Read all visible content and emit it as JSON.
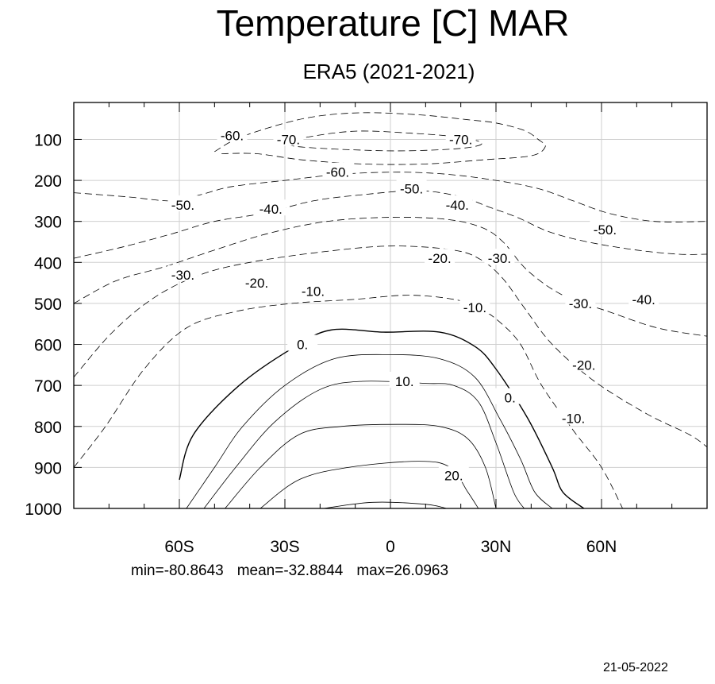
{
  "figure": {
    "title": "Temperature [C] MAR",
    "subtitle": "ERA5 (2021-2021)",
    "stats": {
      "min": "min=-80.8643",
      "mean": "mean=-32.8844",
      "max": "max=26.0963"
    },
    "date": "21-05-2022"
  },
  "chart_data": {
    "type": "contour",
    "title": "Temperature [C] MAR",
    "subtitle": "ERA5 (2021-2021)",
    "xlabel": "",
    "ylabel": "",
    "x_range": [
      -90,
      90
    ],
    "y_range": [
      1000,
      10
    ],
    "x_ticks": [
      {
        "value": -60,
        "label": "60S"
      },
      {
        "value": -30,
        "label": "30S"
      },
      {
        "value": 0,
        "label": "0"
      },
      {
        "value": 30,
        "label": "30N"
      },
      {
        "value": 60,
        "label": "60N"
      }
    ],
    "y_ticks": [
      {
        "value": 100,
        "label": "100"
      },
      {
        "value": 200,
        "label": "200"
      },
      {
        "value": 300,
        "label": "300"
      },
      {
        "value": 400,
        "label": "400"
      },
      {
        "value": 500,
        "label": "500"
      },
      {
        "value": 600,
        "label": "600"
      },
      {
        "value": 700,
        "label": "700"
      },
      {
        "value": 800,
        "label": "800"
      },
      {
        "value": 900,
        "label": "900"
      },
      {
        "value": 1000,
        "label": "1000"
      }
    ],
    "grid": true,
    "negative_contours": "dashed",
    "contours": [
      {
        "level": 0,
        "points": [
          [
            -60,
            930
          ],
          [
            -56,
            820
          ],
          [
            -43,
            700
          ],
          [
            -28,
            610
          ],
          [
            -17,
            565
          ],
          [
            -2,
            570
          ],
          [
            14,
            570
          ],
          [
            24,
            605
          ],
          [
            30,
            660
          ],
          [
            39,
            780
          ],
          [
            46,
            900
          ],
          [
            49,
            960
          ],
          [
            55,
            1000
          ]
        ]
      },
      {
        "level": 5,
        "points": [
          [
            -58,
            1000
          ],
          [
            -50,
            900
          ],
          [
            -42,
            800
          ],
          [
            -30,
            700
          ],
          [
            -16,
            635
          ],
          [
            0,
            625
          ],
          [
            14,
            635
          ],
          [
            24,
            680
          ],
          [
            31,
            780
          ],
          [
            37,
            880
          ],
          [
            41,
            960
          ],
          [
            46,
            1000
          ]
        ]
      },
      {
        "level": 10,
        "points": [
          [
            -53,
            1000
          ],
          [
            -44,
            900
          ],
          [
            -33,
            790
          ],
          [
            -20,
            710
          ],
          [
            -8,
            690
          ],
          [
            10,
            695
          ],
          [
            18,
            700
          ],
          [
            25,
            740
          ],
          [
            30,
            840
          ],
          [
            35,
            960
          ],
          [
            38,
            1000
          ]
        ]
      },
      {
        "level": 15,
        "points": [
          [
            -47,
            1000
          ],
          [
            -37,
            900
          ],
          [
            -26,
            820
          ],
          [
            -14,
            800
          ],
          [
            2,
            795
          ],
          [
            14,
            800
          ],
          [
            22,
            830
          ],
          [
            27,
            900
          ],
          [
            30,
            1000
          ]
        ]
      },
      {
        "level": 20,
        "points": [
          [
            -37,
            1000
          ],
          [
            -26,
            930
          ],
          [
            -12,
            900
          ],
          [
            8,
            885
          ],
          [
            17,
            900
          ],
          [
            22,
            960
          ],
          [
            25,
            1000
          ]
        ]
      },
      {
        "level": 25,
        "points": [
          [
            -19,
            1000
          ],
          [
            -5,
            985
          ],
          [
            10,
            990
          ],
          [
            16,
            1000
          ]
        ]
      },
      {
        "level": -10,
        "points": [
          [
            -90,
            900
          ],
          [
            -81,
            800
          ],
          [
            -70,
            660
          ],
          [
            -58,
            560
          ],
          [
            -44,
            520
          ],
          [
            -28,
            500
          ],
          [
            -10,
            490
          ],
          [
            5,
            480
          ],
          [
            18,
            490
          ],
          [
            25,
            510
          ],
          [
            31,
            545
          ],
          [
            37,
            600
          ],
          [
            43,
            700
          ],
          [
            52,
            810
          ],
          [
            60,
            900
          ],
          [
            66,
            1000
          ]
        ]
      },
      {
        "level": -20,
        "points": [
          [
            -90,
            680
          ],
          [
            -79,
            570
          ],
          [
            -67,
            485
          ],
          [
            -54,
            430
          ],
          [
            -40,
            400
          ],
          [
            -20,
            375
          ],
          [
            0,
            360
          ],
          [
            18,
            370
          ],
          [
            26,
            395
          ],
          [
            32,
            440
          ],
          [
            38,
            510
          ],
          [
            46,
            600
          ],
          [
            58,
            690
          ],
          [
            73,
            770
          ],
          [
            85,
            820
          ],
          [
            90,
            850
          ]
        ]
      },
      {
        "level": -30,
        "points": [
          [
            -90,
            500
          ],
          [
            -78,
            445
          ],
          [
            -64,
            410
          ],
          [
            -50,
            370
          ],
          [
            -35,
            330
          ],
          [
            -18,
            300
          ],
          [
            0,
            290
          ],
          [
            16,
            295
          ],
          [
            26,
            315
          ],
          [
            32,
            350
          ],
          [
            39,
            420
          ],
          [
            49,
            480
          ],
          [
            62,
            520
          ],
          [
            76,
            560
          ],
          [
            90,
            580
          ]
        ]
      },
      {
        "level": -40,
        "points": [
          [
            -90,
            390
          ],
          [
            -75,
            360
          ],
          [
            -62,
            330
          ],
          [
            -50,
            300
          ],
          [
            -36,
            280
          ],
          [
            -22,
            250
          ],
          [
            -8,
            235
          ],
          [
            8,
            225
          ],
          [
            20,
            240
          ],
          [
            28,
            265
          ],
          [
            36,
            290
          ],
          [
            45,
            325
          ],
          [
            56,
            350
          ],
          [
            70,
            370
          ],
          [
            82,
            380
          ],
          [
            90,
            380
          ]
        ]
      },
      {
        "level": -50,
        "points": [
          [
            -90,
            230
          ],
          [
            -75,
            240
          ],
          [
            -62,
            250
          ],
          [
            -54,
            235
          ],
          [
            -45,
            215
          ],
          [
            -30,
            200
          ],
          [
            -14,
            185
          ],
          [
            2,
            180
          ],
          [
            16,
            185
          ],
          [
            30,
            200
          ],
          [
            42,
            220
          ],
          [
            52,
            250
          ],
          [
            62,
            280
          ],
          [
            75,
            300
          ],
          [
            90,
            300
          ]
        ]
      },
      {
        "level": -60,
        "points": [
          [
            -50,
            130
          ],
          [
            -44,
            100
          ],
          [
            -34,
            70
          ],
          [
            -22,
            45
          ],
          [
            -8,
            35
          ],
          [
            8,
            40
          ],
          [
            22,
            52
          ],
          [
            30,
            60
          ],
          [
            38,
            78
          ],
          [
            42,
            100
          ],
          [
            44,
            118
          ],
          [
            40,
            140
          ],
          [
            26,
            150
          ],
          [
            10,
            160
          ],
          [
            -8,
            160
          ],
          [
            -25,
            150
          ],
          [
            -38,
            135
          ],
          [
            -48,
            135
          ]
        ]
      },
      {
        "level": -70,
        "points": [
          [
            -30,
            110
          ],
          [
            -24,
            95
          ],
          [
            -10,
            80
          ],
          [
            6,
            85
          ],
          [
            20,
            95
          ],
          [
            26,
            110
          ],
          [
            20,
            122
          ],
          [
            4,
            128
          ],
          [
            -12,
            125
          ],
          [
            -26,
            118
          ],
          [
            -30,
            110
          ]
        ]
      }
    ],
    "contour_labels": [
      {
        "text": "-60.",
        "x": -45,
        "y": 90
      },
      {
        "text": "-70.",
        "x": -29,
        "y": 100
      },
      {
        "text": "-70.",
        "x": 20,
        "y": 100
      },
      {
        "text": "-60.",
        "x": -15,
        "y": 180
      },
      {
        "text": "-50.",
        "x": -59,
        "y": 260
      },
      {
        "text": "-50.",
        "x": 6,
        "y": 220
      },
      {
        "text": "-40.",
        "x": -34,
        "y": 270
      },
      {
        "text": "-40.",
        "x": 19,
        "y": 260
      },
      {
        "text": "-50.",
        "x": 61,
        "y": 320
      },
      {
        "text": "-20.",
        "x": 14,
        "y": 390
      },
      {
        "text": "-30.",
        "x": 31,
        "y": 390
      },
      {
        "text": "-30.",
        "x": -59,
        "y": 430
      },
      {
        "text": "-20.",
        "x": -38,
        "y": 450
      },
      {
        "text": "-10.",
        "x": -22,
        "y": 470
      },
      {
        "text": "-10.",
        "x": 24,
        "y": 510
      },
      {
        "text": "-30.",
        "x": 54,
        "y": 500
      },
      {
        "text": "-40.",
        "x": 72,
        "y": 490
      },
      {
        "text": "0.",
        "x": -25,
        "y": 600
      },
      {
        "text": "-20.",
        "x": 55,
        "y": 650
      },
      {
        "text": "10.",
        "x": 4,
        "y": 690
      },
      {
        "text": "0.",
        "x": 34,
        "y": 730
      },
      {
        "text": "-10.",
        "x": 52,
        "y": 780
      },
      {
        "text": "20.",
        "x": 18,
        "y": 920
      }
    ]
  }
}
